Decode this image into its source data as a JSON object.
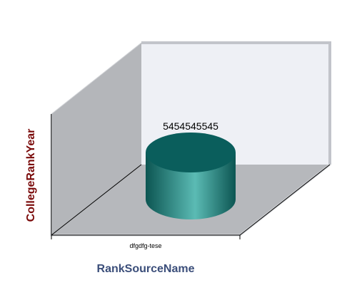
{
  "chart_data": {
    "type": "bar",
    "style": "3d-cylinder",
    "categories": [
      "dfgdfg-tese"
    ],
    "values": [
      5454545545
    ],
    "data_labels": [
      "5454545545"
    ],
    "xlabel": "RankSourceName",
    "ylabel": "CollegeRankYear",
    "grid": false,
    "legend": "none",
    "colors": {
      "bar": "#1e8a86",
      "bar_highlight": "#5bbbb4",
      "bar_dark": "#0c5552",
      "bar_top": "#0a5e5c",
      "wall_left": "#b4b6ba",
      "wall_back": "#eef0f5",
      "floor": "#b6b8bc",
      "frame": "#c2c4ca",
      "xlabel": "#3b4e7a",
      "ylabel": "#7a0a0a"
    }
  }
}
